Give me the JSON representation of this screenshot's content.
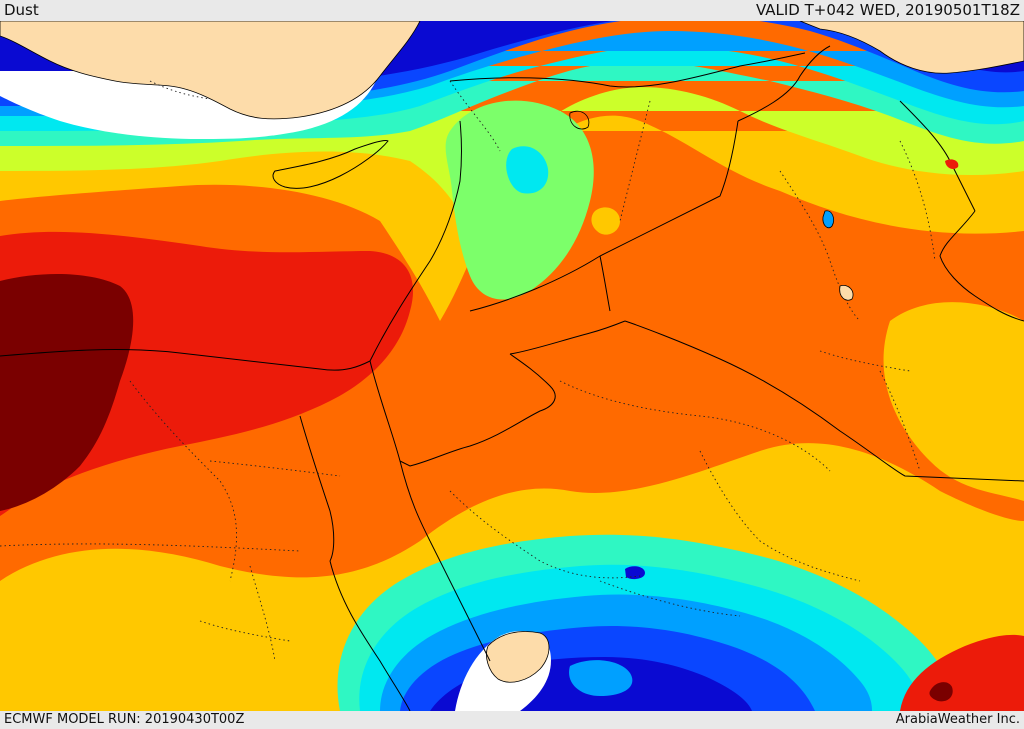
{
  "header": {
    "product": "Dust",
    "valid": "VALID T+042 WED, 20190501T18Z"
  },
  "footer": {
    "model_run": "ECMWF MODEL RUN: 20190430T00Z",
    "credit": "ArabiaWeather Inc."
  },
  "colors": {
    "land": "#fddcaa",
    "white": "#ffffff",
    "navy": "#0a0ad2",
    "blue": "#0a46ff",
    "lightblue": "#00a0ff",
    "cyan": "#00e8f0",
    "aqua": "#2ff7c3",
    "green": "#7cff6a",
    "lime": "#ccff2a",
    "yellow": "#ffc800",
    "orange": "#ff6a00",
    "red": "#ec1b0a",
    "maroon": "#7a0000"
  }
}
